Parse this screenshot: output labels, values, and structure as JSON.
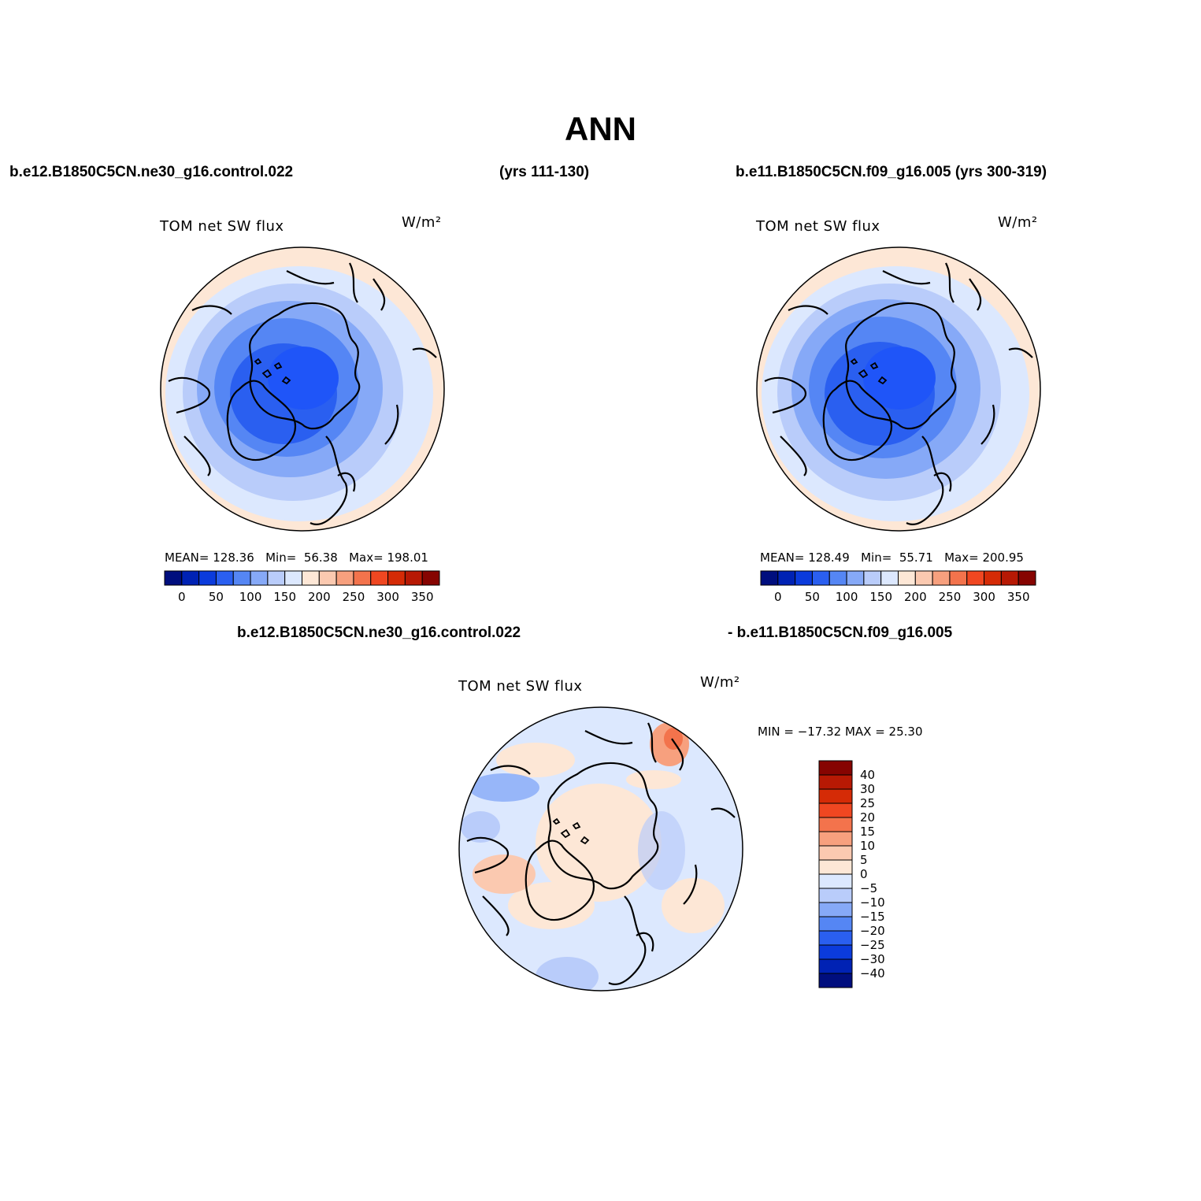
{
  "title": "ANN",
  "header": {
    "case_left": "b.e12.B1850C5CN.ne30_g16.control.022",
    "years_left": "(yrs 111-130)",
    "case_right": "b.e11.B1850C5CN.f09_g16.005 (yrs 300-319)",
    "diff_left": "b.e12.B1850C5CN.ne30_g16.control.022",
    "diff_right": "- b.e11.B1850C5CN.f09_g16.005"
  },
  "colors": {
    "scale_abs": [
      "#000e7e",
      "#0022b4",
      "#0b3bdc",
      "#2a5ff0",
      "#5586f4",
      "#86a9f7",
      "#b9ccfa",
      "#dce8fe",
      "#fde7d6",
      "#fbc9b0",
      "#f7a07e",
      "#f3734c",
      "#f04721",
      "#d52b06",
      "#b71904",
      "#860401"
    ],
    "scale_diff": [
      "#000e7e",
      "#0022b4",
      "#0b3bdc",
      "#2a5ff0",
      "#5586f4",
      "#86a9f7",
      "#b9ccfa",
      "#dce8fe",
      "#fde7d6",
      "#fbc9b0",
      "#f7a07e",
      "#f3734c",
      "#f04721",
      "#d52b06",
      "#b71904",
      "#860401"
    ]
  },
  "chart_data": [
    {
      "type": "heatmap",
      "projection": "north polar stereographic",
      "variable": "TOM net SW flux",
      "units": "W/m²",
      "case": "b.e12.B1850C5CN.ne30_g16.control.022",
      "years": "(yrs 111-130)",
      "stats": {
        "mean_label": "MEAN=",
        "mean": "128.36",
        "min_label": "Min=",
        "min": "56.38",
        "max_label": "Max=",
        "max": "198.01"
      },
      "colorbar": {
        "orientation": "horizontal",
        "levels": [
          0,
          25,
          50,
          75,
          100,
          125,
          150,
          175,
          200,
          225,
          250,
          275,
          300,
          325,
          350
        ],
        "tick_labels": [
          "0",
          "50",
          "100",
          "150",
          "200",
          "250",
          "300",
          "350"
        ]
      }
    },
    {
      "type": "heatmap",
      "projection": "north polar stereographic",
      "variable": "TOM net SW flux",
      "units": "W/m²",
      "case": "b.e11.B1850C5CN.f09_g16.005 (yrs 300-319)",
      "stats": {
        "mean_label": "MEAN=",
        "mean": "128.49",
        "min_label": "Min=",
        "min": "55.71",
        "max_label": "Max=",
        "max": "200.95"
      },
      "colorbar": {
        "orientation": "horizontal",
        "levels": [
          0,
          25,
          50,
          75,
          100,
          125,
          150,
          175,
          200,
          225,
          250,
          275,
          300,
          325,
          350
        ],
        "tick_labels": [
          "0",
          "50",
          "100",
          "150",
          "200",
          "250",
          "300",
          "350"
        ]
      }
    },
    {
      "type": "heatmap",
      "projection": "north polar stereographic",
      "variable": "TOM net SW flux",
      "units": "W/m²",
      "case": "b.e12.B1850C5CN.ne30_g16.control.022 - b.e11.B1850C5CN.f09_g16.005",
      "stats": {
        "text": "MIN = −17.32 MAX =  25.30"
      },
      "colorbar": {
        "orientation": "vertical",
        "tick_labels": [
          "40",
          "30",
          "25",
          "20",
          "15",
          "10",
          "5",
          "0",
          "−5",
          "−10",
          "−15",
          "−20",
          "−25",
          "−30",
          "−40"
        ]
      }
    }
  ]
}
